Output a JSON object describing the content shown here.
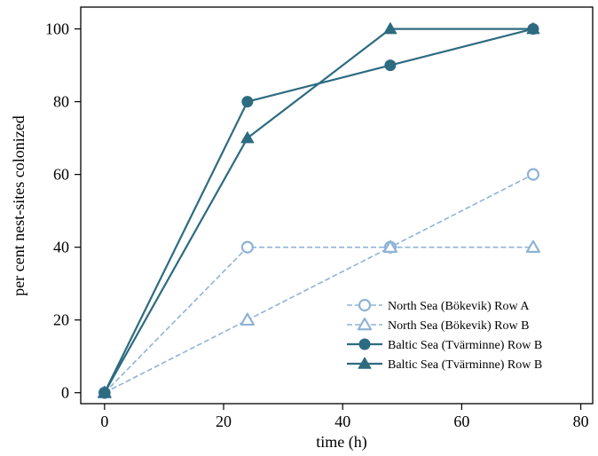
{
  "chart_data": {
    "type": "line",
    "xlabel": "time (h)",
    "ylabel": "per cent nest-sites colonized",
    "xlim": [
      -4,
      82
    ],
    "ylim": [
      -3,
      106
    ],
    "xticks": [
      0,
      20,
      40,
      60,
      80
    ],
    "yticks": [
      0,
      20,
      40,
      60,
      80,
      100
    ],
    "grid": false,
    "legend_position": "bottom-right",
    "series": [
      {
        "name": "North Sea (Bökevik) Row A",
        "x": [
          0,
          24,
          48,
          72
        ],
        "y": [
          0,
          40,
          40,
          60
        ],
        "color": "#8fb3d6",
        "marker": "circle-open",
        "line": "dashed"
      },
      {
        "name": "North Sea (Bökevik) Row B",
        "x": [
          0,
          24,
          48,
          72
        ],
        "y": [
          0,
          20,
          40,
          40
        ],
        "color": "#8fb3d6",
        "marker": "triangle-open",
        "line": "dashed"
      },
      {
        "name": "Baltic Sea (Tvärminne) Row B",
        "x": [
          0,
          24,
          48,
          72
        ],
        "y": [
          0,
          80,
          90,
          100
        ],
        "color": "#2d6b80",
        "marker": "circle-filled",
        "line": "solid"
      },
      {
        "name": "Baltic Sea (Tvärminne) Row B",
        "x": [
          0,
          24,
          48,
          72
        ],
        "y": [
          0,
          70,
          100,
          100
        ],
        "color": "#2d6b80",
        "marker": "triangle-filled",
        "line": "solid"
      }
    ]
  }
}
